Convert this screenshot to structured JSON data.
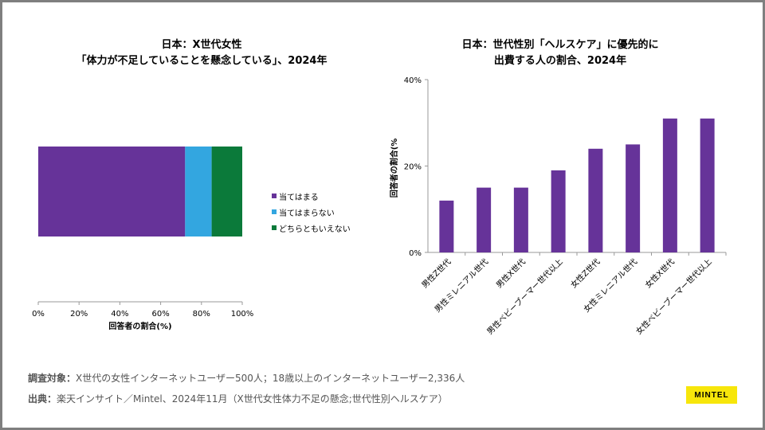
{
  "chart_data": [
    {
      "type": "bar",
      "orientation": "horizontal-stacked",
      "title_line1": "日本：X世代女性",
      "title_line2": "「体力が不足していることを懸念している」、2024年",
      "xlabel": "回答者の割合(%)",
      "xlim": [
        0,
        100
      ],
      "xticks": [
        "0%",
        "20%",
        "40%",
        "60%",
        "80%",
        "100%"
      ],
      "series": [
        {
          "name": "当てはまる",
          "value": 72,
          "color": "#663399"
        },
        {
          "name": "当てはまらない",
          "value": 13,
          "color": "#33a6e0"
        },
        {
          "name": "どちらともいえない",
          "value": 15,
          "color": "#0b7a3a"
        }
      ],
      "legend": "right"
    },
    {
      "type": "bar",
      "title_line1": "日本：世代性別「ヘルスケア」に優先的に",
      "title_line2": "出費する人の割合、2024年",
      "ylabel": "回答者の割合(%",
      "ylim": [
        0,
        40
      ],
      "yticks": [
        "0%",
        "20%",
        "40%"
      ],
      "color": "#663399",
      "categories": [
        "男性Z世代",
        "男性ミレニアル世代",
        "男性X世代",
        "男性ベビーブーマー世代以上",
        "女性Z世代",
        "女性ミレニアル世代",
        "女性X世代",
        "女性ベビーブーマー世代以上"
      ],
      "values": [
        12,
        15,
        15,
        19,
        24,
        25,
        31,
        31
      ]
    }
  ],
  "footer": {
    "subject_label": "調査対象：",
    "subject_text": "X世代の女性インターネットユーザー500人；18歳以上のインターネットユーザー2,336人",
    "source_label": "出典：",
    "source_text": "楽天インサイト／Mintel、2024年11月（X世代女性体力不足の懸念;世代性別ヘルスケア）"
  },
  "logo": "MINTEL"
}
